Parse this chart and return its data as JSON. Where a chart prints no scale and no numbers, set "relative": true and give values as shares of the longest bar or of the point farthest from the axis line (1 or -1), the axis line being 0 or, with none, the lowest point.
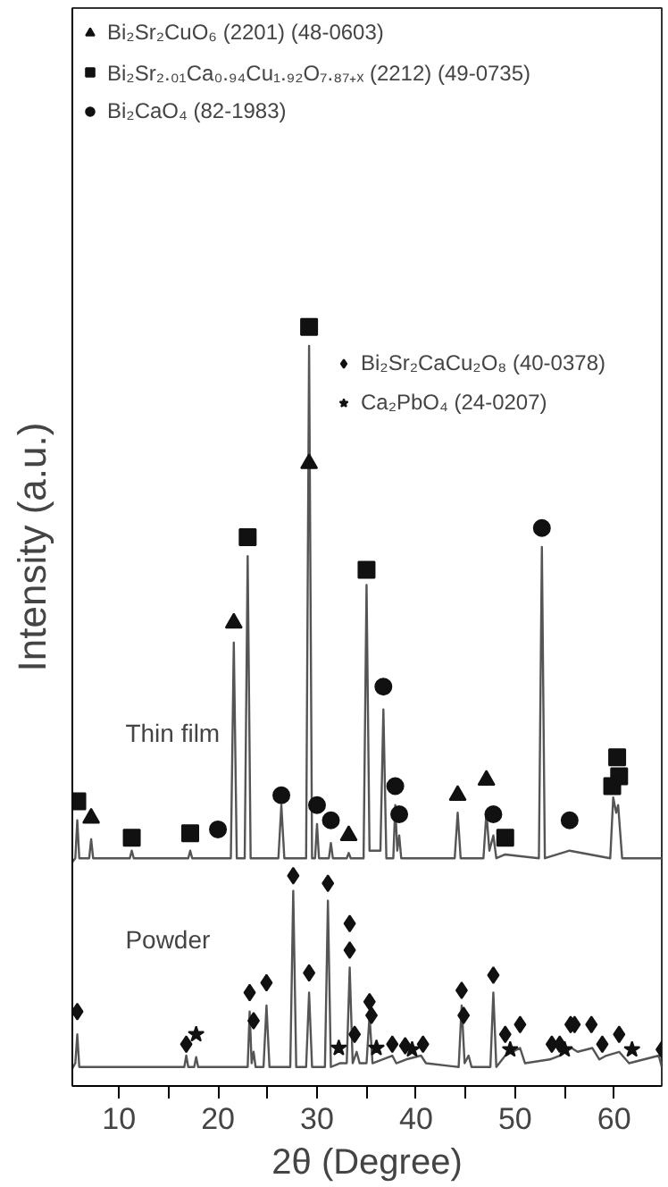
{
  "chart_data": {
    "type": "line",
    "relative": true,
    "xlabel": "2θ (Degree)",
    "ylabel": "Intensity (a.u.)",
    "xlim": [
      5.3,
      64.8
    ],
    "xticks": [
      10,
      {
        "value": 15,
        "label": null
      },
      20,
      {
        "value": 25,
        "label": null
      },
      30,
      {
        "value": 35,
        "label": null
      },
      40,
      {
        "value": 45,
        "label": null
      },
      50,
      {
        "value": 55,
        "label": null
      },
      60
    ],
    "legend": "top left",
    "grid": false,
    "tick_labels": "x",
    "annotations": [
      "Thin film",
      "Powder"
    ],
    "series": [
      {
        "color": "#555555",
        "x": [
          5.3,
          5.6,
          5.8,
          6.0,
          7.0,
          7.2,
          7.4,
          11.1,
          11.3,
          11.5,
          17.0,
          17.2,
          17.4,
          21.3,
          21.6,
          21.9,
          22.7,
          23.0,
          23.3,
          26.1,
          26.4,
          26.7,
          28.9,
          29.2,
          29.5,
          29.8,
          30.0,
          30.2,
          31.2,
          31.4,
          31.6,
          33.0,
          33.2,
          33.4,
          34.7,
          35.0,
          35.3,
          36.4,
          36.7,
          37.0,
          37.7,
          37.9,
          38.1,
          38.3,
          38.5,
          43.9,
          44.2,
          44.5,
          46.8,
          47.1,
          47.4,
          47.8,
          48.1,
          49.0,
          52.4,
          52.7,
          53.0,
          55.5,
          59.6,
          59.9,
          60.2,
          60.4,
          60.8,
          64.8
        ],
        "values": [
          0.295,
          0.3,
          0.35,
          0.3,
          0.3,
          0.325,
          0.3,
          0.3,
          0.31,
          0.3,
          0.3,
          0.31,
          0.3,
          0.3,
          0.584,
          0.3,
          0.3,
          0.698,
          0.3,
          0.3,
          0.37,
          0.3,
          0.3,
          0.975,
          0.3,
          0.3,
          0.345,
          0.3,
          0.3,
          0.32,
          0.3,
          0.3,
          0.307,
          0.3,
          0.3,
          0.66,
          0.31,
          0.31,
          0.496,
          0.3,
          0.3,
          0.37,
          0.31,
          0.33,
          0.3,
          0.3,
          0.36,
          0.3,
          0.3,
          0.36,
          0.31,
          0.33,
          0.3,
          0.305,
          0.3,
          0.71,
          0.3,
          0.31,
          0.3,
          0.38,
          0.36,
          0.37,
          0.3,
          0.3
        ]
      },
      {
        "color": "#555555",
        "x": [
          5.3,
          5.6,
          5.8,
          6.0,
          16.6,
          16.8,
          17.0,
          17.6,
          17.8,
          18.0,
          23.0,
          23.2,
          23.4,
          23.6,
          23.8,
          24.6,
          24.9,
          25.2,
          27.3,
          27.6,
          27.9,
          28.9,
          29.2,
          29.5,
          30.8,
          31.1,
          31.4,
          32.3,
          33.0,
          33.3,
          33.6,
          34.0,
          34.3,
          35.0,
          35.3,
          35.6,
          37.6,
          38.0,
          39.0,
          40.5,
          41.0,
          44.3,
          44.6,
          44.9,
          45.3,
          45.6,
          47.5,
          47.8,
          48.1,
          49.0,
          50.5,
          51.0,
          53.5,
          54.5,
          55.7,
          56.3,
          57.8,
          58.5,
          59.2,
          60.5,
          61.5,
          64.5,
          64.8
        ],
        "values": [
          0.023,
          0.03,
          0.068,
          0.025,
          0.025,
          0.04,
          0.025,
          0.025,
          0.038,
          0.025,
          0.025,
          0.098,
          0.03,
          0.045,
          0.025,
          0.025,
          0.106,
          0.025,
          0.025,
          0.257,
          0.025,
          0.025,
          0.123,
          0.025,
          0.025,
          0.244,
          0.025,
          0.03,
          0.03,
          0.156,
          0.03,
          0.045,
          0.03,
          0.03,
          0.093,
          0.03,
          0.04,
          0.03,
          0.035,
          0.04,
          0.03,
          0.025,
          0.106,
          0.03,
          0.04,
          0.025,
          0.025,
          0.123,
          0.025,
          0.04,
          0.05,
          0.03,
          0.035,
          0.04,
          0.05,
          0.045,
          0.05,
          0.035,
          0.04,
          0.045,
          0.03,
          0.04,
          0.025
        ]
      },
      {
        "type": "scatter",
        "marker": "triangle",
        "name": "Bi₂Sr₂CuO₆ (2201) (48-0603)",
        "color": "#111111",
        "x": [
          7.2,
          21.6,
          29.2,
          33.2,
          44.2,
          47.1
        ],
        "values": [
          0.353,
          0.61,
          0.82,
          0.33,
          0.383,
          0.403
        ]
      },
      {
        "type": "scatter",
        "marker": "square",
        "name": "Bi₂Sr₂.₀₁Ca₀.₉₄Cu₁.₉₂O₇.₈₇₊ₓ (2212) (49-0735)",
        "color": "#111111",
        "x": [
          5.8,
          11.3,
          17.2,
          23.0,
          29.2,
          35.0,
          49.0,
          59.8,
          60.3,
          60.5
        ],
        "values": [
          0.375,
          0.327,
          0.333,
          0.723,
          1.0,
          0.68,
          0.327,
          0.395,
          0.433,
          0.408
        ]
      },
      {
        "type": "scatter",
        "marker": "circle",
        "name": "Bi₂CaO₄ (82-1983)",
        "color": "#111111",
        "x": [
          20.0,
          26.4,
          30.0,
          31.4,
          36.7,
          37.9,
          38.3,
          47.8,
          52.7,
          55.5
        ],
        "values": [
          0.338,
          0.383,
          0.37,
          0.35,
          0.526,
          0.395,
          0.358,
          0.358,
          0.735,
          0.35
        ]
      },
      {
        "type": "scatter",
        "marker": "diamond",
        "name": "Bi₂Sr₂CaCu₂O₈ (40-0378)",
        "color": "#111111",
        "x": [
          5.8,
          16.8,
          23.2,
          23.6,
          24.9,
          27.6,
          29.2,
          31.1,
          33.3,
          33.3,
          33.8,
          35.3,
          35.5,
          37.6,
          38.9,
          40.7,
          44.6,
          44.8,
          47.8,
          49.0,
          50.5,
          53.7,
          54.5,
          55.6,
          56.0,
          57.7,
          58.8,
          60.5,
          64.8
        ],
        "values": [
          0.098,
          0.055,
          0.123,
          0.086,
          0.136,
          0.277,
          0.149,
          0.267,
          0.214,
          0.179,
          0.068,
          0.111,
          0.093,
          0.055,
          0.053,
          0.055,
          0.126,
          0.093,
          0.146,
          0.068,
          0.081,
          0.055,
          0.055,
          0.081,
          0.081,
          0.081,
          0.055,
          0.068,
          0.048
        ]
      },
      {
        "type": "scatter",
        "marker": "star",
        "name": "Ca₂PbO₄ (24-0207)",
        "color": "#111111",
        "x": [
          17.8,
          32.2,
          36.0,
          39.6,
          49.5,
          55.0,
          61.8
        ],
        "values": [
          0.068,
          0.05,
          0.05,
          0.048,
          0.048,
          0.048,
          0.048
        ]
      }
    ]
  }
}
